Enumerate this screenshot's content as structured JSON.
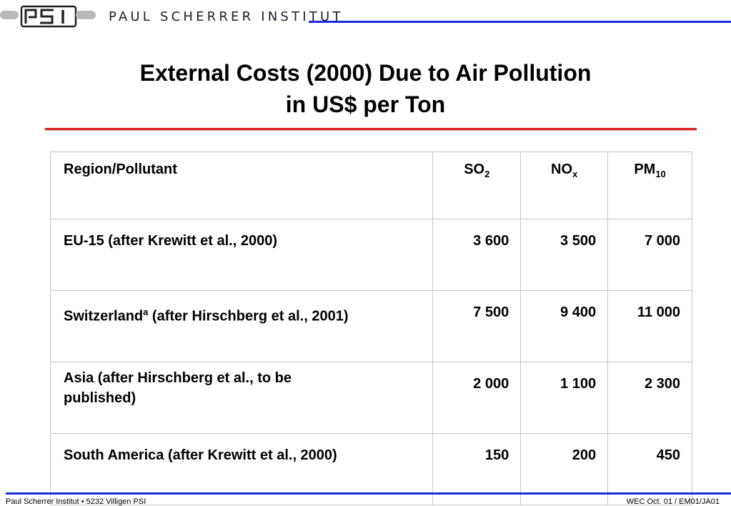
{
  "header": {
    "logo_text": "PSI",
    "institute_name": "PAUL SCHERRER INSTITUT",
    "accent_color": "#1a2bd6"
  },
  "title": {
    "line1": "External Costs (2000) Due to Air Pollution",
    "line2": "in US$ per Ton",
    "rule_color": "#e02020"
  },
  "table": {
    "header": {
      "region": "Region/Pollutant",
      "so2": {
        "base": "SO",
        "sub": "2"
      },
      "nox": {
        "base": "NO",
        "sub": "x"
      },
      "pm10": {
        "base": "PM",
        "sub": "10"
      }
    },
    "rows": [
      {
        "region": "EU-15 (after Krewitt et al., 2000)",
        "so2": "3 600",
        "nox": "3 500",
        "pm10": "7 000"
      },
      {
        "region_main": "Switzerland",
        "region_sup": "a",
        "region_rest": " (after Hirschberg et al., 2001)",
        "so2": "7 500",
        "nox": "9 400",
        "pm10": "11 000"
      },
      {
        "region": "Asia (after Hirschberg et al., to be published)",
        "so2": "2 000",
        "nox": "1 100",
        "pm10": "2 300"
      },
      {
        "region": "South America (after Krewitt et al., 2000)",
        "so2": "150",
        "nox": "200",
        "pm10": "450"
      }
    ]
  },
  "footer": {
    "left": "Paul Scherrer Institut • 5232 Villigen PSI",
    "right": "WEC Oct. 01 / EM01/JA01"
  }
}
